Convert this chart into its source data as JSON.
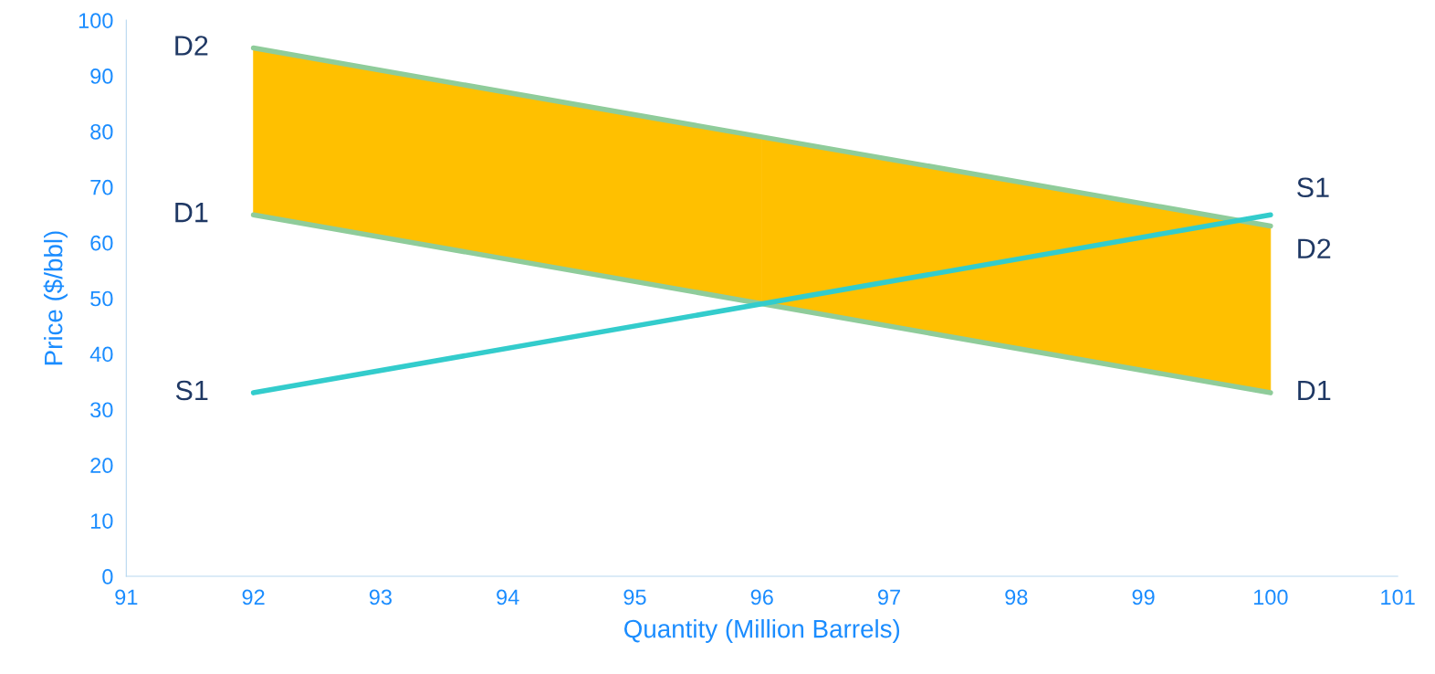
{
  "chart_data": {
    "type": "line",
    "x": [
      92,
      100
    ],
    "xlabel": "Quantity (Million Barrels)",
    "ylabel": "Price ($/bbl)",
    "xlim": [
      91,
      101
    ],
    "xticks": [
      91,
      92,
      93,
      94,
      95,
      96,
      97,
      98,
      99,
      100,
      101
    ],
    "ylim": [
      0,
      100
    ],
    "yticks": [
      0,
      10,
      20,
      30,
      40,
      50,
      60,
      70,
      80,
      90,
      100
    ],
    "grid": false,
    "legend": false,
    "marker": "none",
    "line_style": "solid",
    "series": [
      {
        "name": "D2",
        "color": "#8fcc9a",
        "values": [
          95,
          63
        ],
        "lower": [
          65,
          33
        ],
        "upper": [
          95,
          63
        ],
        "colors": [
          "#ffc000",
          "#ffc000"
        ]
      },
      {
        "name": "D1",
        "color": "#8fcc9a",
        "values": [
          65,
          33
        ]
      },
      {
        "name": "S1",
        "color": "#33cccc",
        "values": [
          33,
          65
        ]
      }
    ]
  }
}
